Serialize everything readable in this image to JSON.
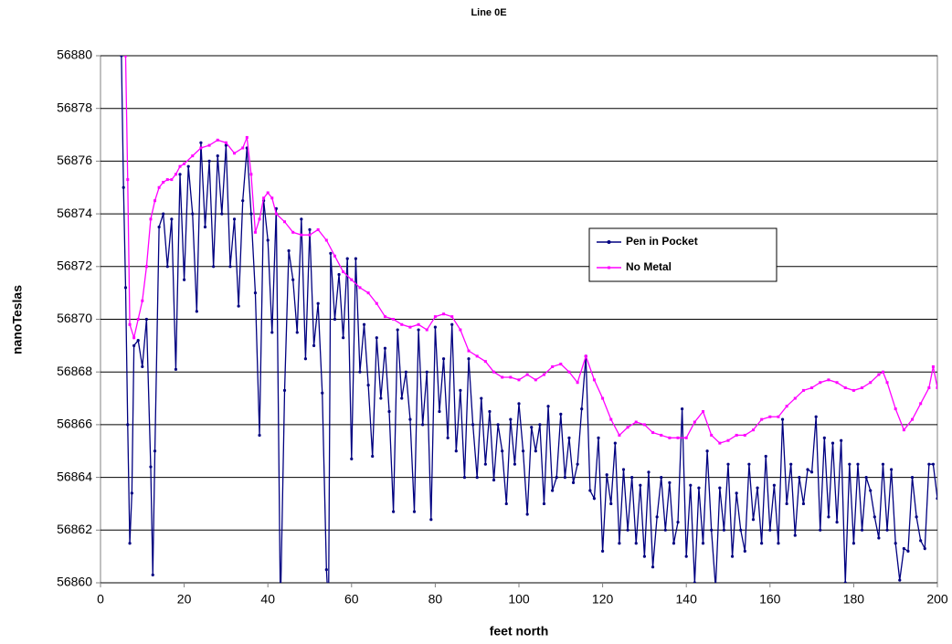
{
  "chart_data": {
    "type": "line",
    "title": "Line 0E",
    "x_label": "feet north",
    "y_label": "nanoTeslas",
    "xlim": [
      0,
      200
    ],
    "xticks": [
      0,
      20,
      40,
      60,
      80,
      100,
      120,
      140,
      160,
      180,
      200
    ],
    "ylim": [
      56860,
      56880
    ],
    "yticks": [
      56860,
      56862,
      56864,
      56866,
      56868,
      56870,
      56872,
      56874,
      56876,
      56878,
      56880
    ],
    "grid": true,
    "legend_position": "right",
    "series": [
      {
        "name": "Pen in Pocket",
        "color": "#000080",
        "x": [
          5,
          5.5,
          6,
          6.5,
          7,
          7.5,
          8,
          9,
          10,
          11,
          12,
          12.5,
          13,
          14,
          15,
          16,
          17,
          18,
          19,
          20,
          21,
          22,
          23,
          24,
          25,
          26,
          27,
          28,
          29,
          30,
          31,
          32,
          33,
          34,
          35,
          36,
          37,
          38,
          39,
          40,
          41,
          42,
          43,
          44,
          45,
          46,
          47,
          48,
          49,
          50,
          51,
          52,
          53,
          54,
          54.5,
          55,
          56,
          57,
          58,
          59,
          60,
          61,
          62,
          63,
          64,
          65,
          66,
          67,
          68,
          69,
          70,
          71,
          72,
          73,
          74,
          75,
          76,
          77,
          78,
          79,
          80,
          81,
          82,
          83,
          84,
          85,
          86,
          87,
          88,
          89,
          90,
          91,
          92,
          93,
          94,
          95,
          96,
          97,
          98,
          99,
          100,
          101,
          102,
          103,
          104,
          105,
          106,
          107,
          108,
          109,
          110,
          111,
          112,
          113,
          114,
          115,
          116,
          117,
          118,
          119,
          120,
          121,
          122,
          123,
          124,
          125,
          126,
          127,
          128,
          129,
          130,
          131,
          132,
          133,
          134,
          135,
          136,
          137,
          138,
          139,
          140,
          141,
          142,
          143,
          144,
          145,
          146,
          147,
          148,
          149,
          150,
          151,
          152,
          153,
          154,
          155,
          156,
          157,
          158,
          159,
          160,
          161,
          162,
          163,
          164,
          165,
          166,
          167,
          168,
          169,
          170,
          171,
          172,
          173,
          174,
          175,
          176,
          177,
          178,
          179,
          180,
          181,
          182,
          183,
          184,
          185,
          186,
          187,
          188,
          189,
          190,
          191,
          192,
          193,
          194,
          195,
          196,
          197,
          198,
          199,
          200
        ],
        "values": [
          56880,
          56875,
          56871.2,
          56866,
          56861.5,
          56863.4,
          56869,
          56869.2,
          56868.2,
          56870,
          56864.4,
          56860.3,
          56865,
          56873.5,
          56874,
          56872,
          56873.8,
          56868.1,
          56875.5,
          56871.5,
          56875.8,
          56874,
          56870.3,
          56876.7,
          56873.5,
          56876,
          56872,
          56876.2,
          56874,
          56876.6,
          56872,
          56873.8,
          56870.5,
          56874.5,
          56876.5,
          56874,
          56871,
          56865.6,
          56874.5,
          56873,
          56869.5,
          56874.2,
          56859,
          56867.3,
          56872.6,
          56871.5,
          56869.5,
          56873.8,
          56868.5,
          56873.4,
          56869,
          56870.6,
          56867.2,
          56860.5,
          56859,
          56872.5,
          56870,
          56871.7,
          56869.3,
          56872.3,
          56864.7,
          56872.3,
          56868,
          56869.8,
          56867.5,
          56864.8,
          56869.3,
          56867,
          56868.9,
          56866.5,
          56862.7,
          56869.6,
          56867,
          56868,
          56866.2,
          56862.7,
          56869.6,
          56866,
          56868,
          56862.4,
          56869.7,
          56866.5,
          56868.5,
          56865.5,
          56869.8,
          56865,
          56867.3,
          56864,
          56868.5,
          56866,
          56864,
          56867,
          56864.5,
          56866.5,
          56863.9,
          56866,
          56865,
          56863,
          56866.2,
          56864.5,
          56866.8,
          56865,
          56862.6,
          56865.9,
          56865,
          56866,
          56863,
          56866.7,
          56863.5,
          56864,
          56866.4,
          56864,
          56865.5,
          56863.8,
          56864.5,
          56866.6,
          56868.6,
          56863.5,
          56863.2,
          56865.5,
          56861.2,
          56864.1,
          56863,
          56865.3,
          56861.5,
          56864.3,
          56862,
          56864,
          56861.5,
          56863.7,
          56861,
          56864.2,
          56860.6,
          56862.5,
          56864,
          56862,
          56863.8,
          56861.5,
          56862.3,
          56866.6,
          56861,
          56863.7,
          56860,
          56863.6,
          56861.5,
          56865,
          56862,
          56859.8,
          56863.6,
          56862,
          56864.5,
          56861,
          56863.4,
          56862,
          56861.2,
          56864.5,
          56862.4,
          56863.6,
          56861.5,
          56864.8,
          56862,
          56863.7,
          56861.5,
          56866.2,
          56863,
          56864.5,
          56861.8,
          56864,
          56863,
          56864.3,
          56864.2,
          56866.3,
          56862,
          56865.5,
          56862.5,
          56865.3,
          56862.3,
          56865.4,
          56860,
          56864.5,
          56861.5,
          56864.5,
          56862,
          56864,
          56863.5,
          56862.5,
          56861.7,
          56864.5,
          56862,
          56864.3,
          56861.5,
          56860.1,
          56861.3,
          56861.2,
          56864,
          56862.5,
          56861.6,
          56861.3,
          56864.5,
          56864.5,
          56863.2
        ]
      },
      {
        "name": "No Metal",
        "color": "#ff00ff",
        "x": [
          5,
          6,
          6.5,
          7,
          8,
          9,
          10,
          11,
          12,
          13,
          14,
          15,
          16,
          17,
          18,
          19,
          20,
          22,
          24,
          26,
          28,
          30,
          32,
          34,
          35,
          36,
          37,
          38,
          39,
          40,
          41,
          42,
          44,
          46,
          48,
          50,
          52,
          54,
          56,
          58,
          60,
          62,
          64,
          66,
          68,
          70,
          72,
          74,
          76,
          78,
          80,
          82,
          84,
          86,
          88,
          90,
          92,
          94,
          96,
          98,
          100,
          102,
          104,
          106,
          108,
          110,
          112,
          114,
          116,
          118,
          120,
          122,
          124,
          126,
          128,
          130,
          132,
          134,
          136,
          138,
          140,
          142,
          144,
          146,
          148,
          150,
          152,
          154,
          156,
          158,
          160,
          162,
          164,
          166,
          168,
          170,
          172,
          174,
          176,
          178,
          180,
          182,
          184,
          186,
          187,
          188,
          190,
          192,
          194,
          196,
          198,
          199,
          200
        ],
        "values": [
          56882,
          56880,
          56875.3,
          56869.8,
          56869.3,
          56870,
          56870.7,
          56872,
          56873.8,
          56874.5,
          56875,
          56875.2,
          56875.3,
          56875.3,
          56875.5,
          56875.8,
          56875.9,
          56876.2,
          56876.5,
          56876.6,
          56876.8,
          56876.7,
          56876.3,
          56876.5,
          56876.9,
          56875.5,
          56873.3,
          56873.8,
          56874.6,
          56874.8,
          56874.6,
          56874,
          56873.7,
          56873.3,
          56873.2,
          56873.2,
          56873.4,
          56873,
          56872.4,
          56871.8,
          56871.5,
          56871.2,
          56871,
          56870.6,
          56870.1,
          56870,
          56869.8,
          56869.7,
          56869.8,
          56869.6,
          56870.1,
          56870.2,
          56870.1,
          56869.6,
          56868.8,
          56868.6,
          56868.4,
          56868,
          56867.8,
          56867.8,
          56867.7,
          56867.9,
          56867.7,
          56867.9,
          56868.2,
          56868.3,
          56868,
          56867.6,
          56868.6,
          56867.7,
          56867,
          56866.2,
          56865.6,
          56865.9,
          56866.1,
          56866,
          56865.7,
          56865.6,
          56865.5,
          56865.5,
          56865.5,
          56866.1,
          56866.5,
          56865.6,
          56865.3,
          56865.4,
          56865.6,
          56865.6,
          56865.8,
          56866.2,
          56866.3,
          56866.3,
          56866.7,
          56867,
          56867.3,
          56867.4,
          56867.6,
          56867.7,
          56867.6,
          56867.4,
          56867.3,
          56867.4,
          56867.6,
          56867.9,
          56868,
          56867.6,
          56866.6,
          56865.8,
          56866.2,
          56866.8,
          56867.4,
          56868.2,
          56867.4
        ]
      }
    ]
  }
}
